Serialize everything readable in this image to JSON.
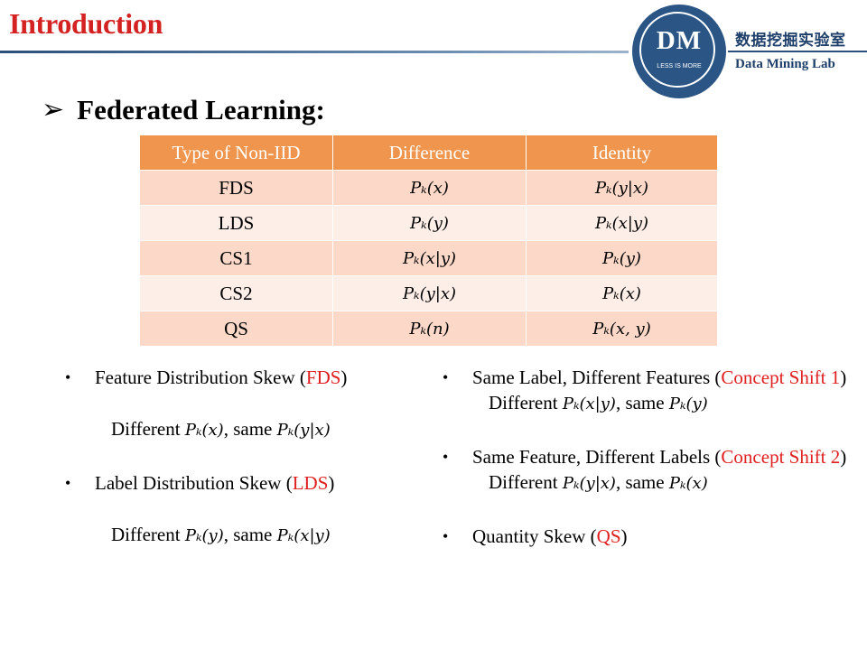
{
  "header": {
    "title": "Introduction",
    "logo_letters": "DM",
    "logo_tagline": "LESS IS MORE",
    "lab_name_cn": "数据挖掘实验室",
    "lab_name_en": "Data Mining Lab"
  },
  "section": {
    "heading": "Federated Learning:"
  },
  "table": {
    "headers": [
      "Type of Non-IID",
      "Difference",
      "Identity"
    ],
    "rows": [
      {
        "type": "FDS",
        "difference": "Pₖ(x)",
        "identity": "Pₖ(y|x)"
      },
      {
        "type": "LDS",
        "difference": "Pₖ(y)",
        "identity": "Pₖ(x|y)"
      },
      {
        "type": "CS1",
        "difference": "Pₖ(x|y)",
        "identity": "Pₖ(y)"
      },
      {
        "type": "CS2",
        "difference": "Pₖ(y|x)",
        "identity": "Pₖ(x)"
      },
      {
        "type": "QS",
        "difference": "Pₖ(n)",
        "identity": "Pₖ(x, y)"
      }
    ]
  },
  "left_bullets": [
    {
      "title": "Feature Distribution  Skew (",
      "abbr": "FDS",
      "close": ")",
      "detail_prefix": "Different ",
      "detail_diff": "Pₖ(x)",
      "detail_mid": ", same ",
      "detail_same": "Pₖ(y|x)"
    },
    {
      "title": "Label Distribution  Skew (",
      "abbr": "LDS",
      "close": ")",
      "detail_prefix": "Different ",
      "detail_diff": "Pₖ(y)",
      "detail_mid": ", same ",
      "detail_same": "Pₖ(x|y)"
    }
  ],
  "right_bullets": [
    {
      "title": "Same Label, Different Features (",
      "abbr": "Concept Shift 1",
      "close": ")",
      "detail_prefix": "Different ",
      "detail_diff": "Pₖ(x|y)",
      "detail_mid": ", same ",
      "detail_same": "Pₖ(y)"
    },
    {
      "title": "Same Feature, Different Labels (",
      "abbr": "Concept Shift 2",
      "close": ")",
      "detail_prefix": "Different ",
      "detail_diff": "Pₖ(y|x)",
      "detail_mid": ", same ",
      "detail_same": "Pₖ(x)"
    },
    {
      "title": "Quantity Skew (",
      "abbr": "QS",
      "close": ")"
    }
  ],
  "colors": {
    "title_red": "#d42222",
    "table_header": "#f0954d",
    "row_odd": "#fbd8c8",
    "row_even": "#fdeee8",
    "logo_blue": "#2a5585"
  }
}
